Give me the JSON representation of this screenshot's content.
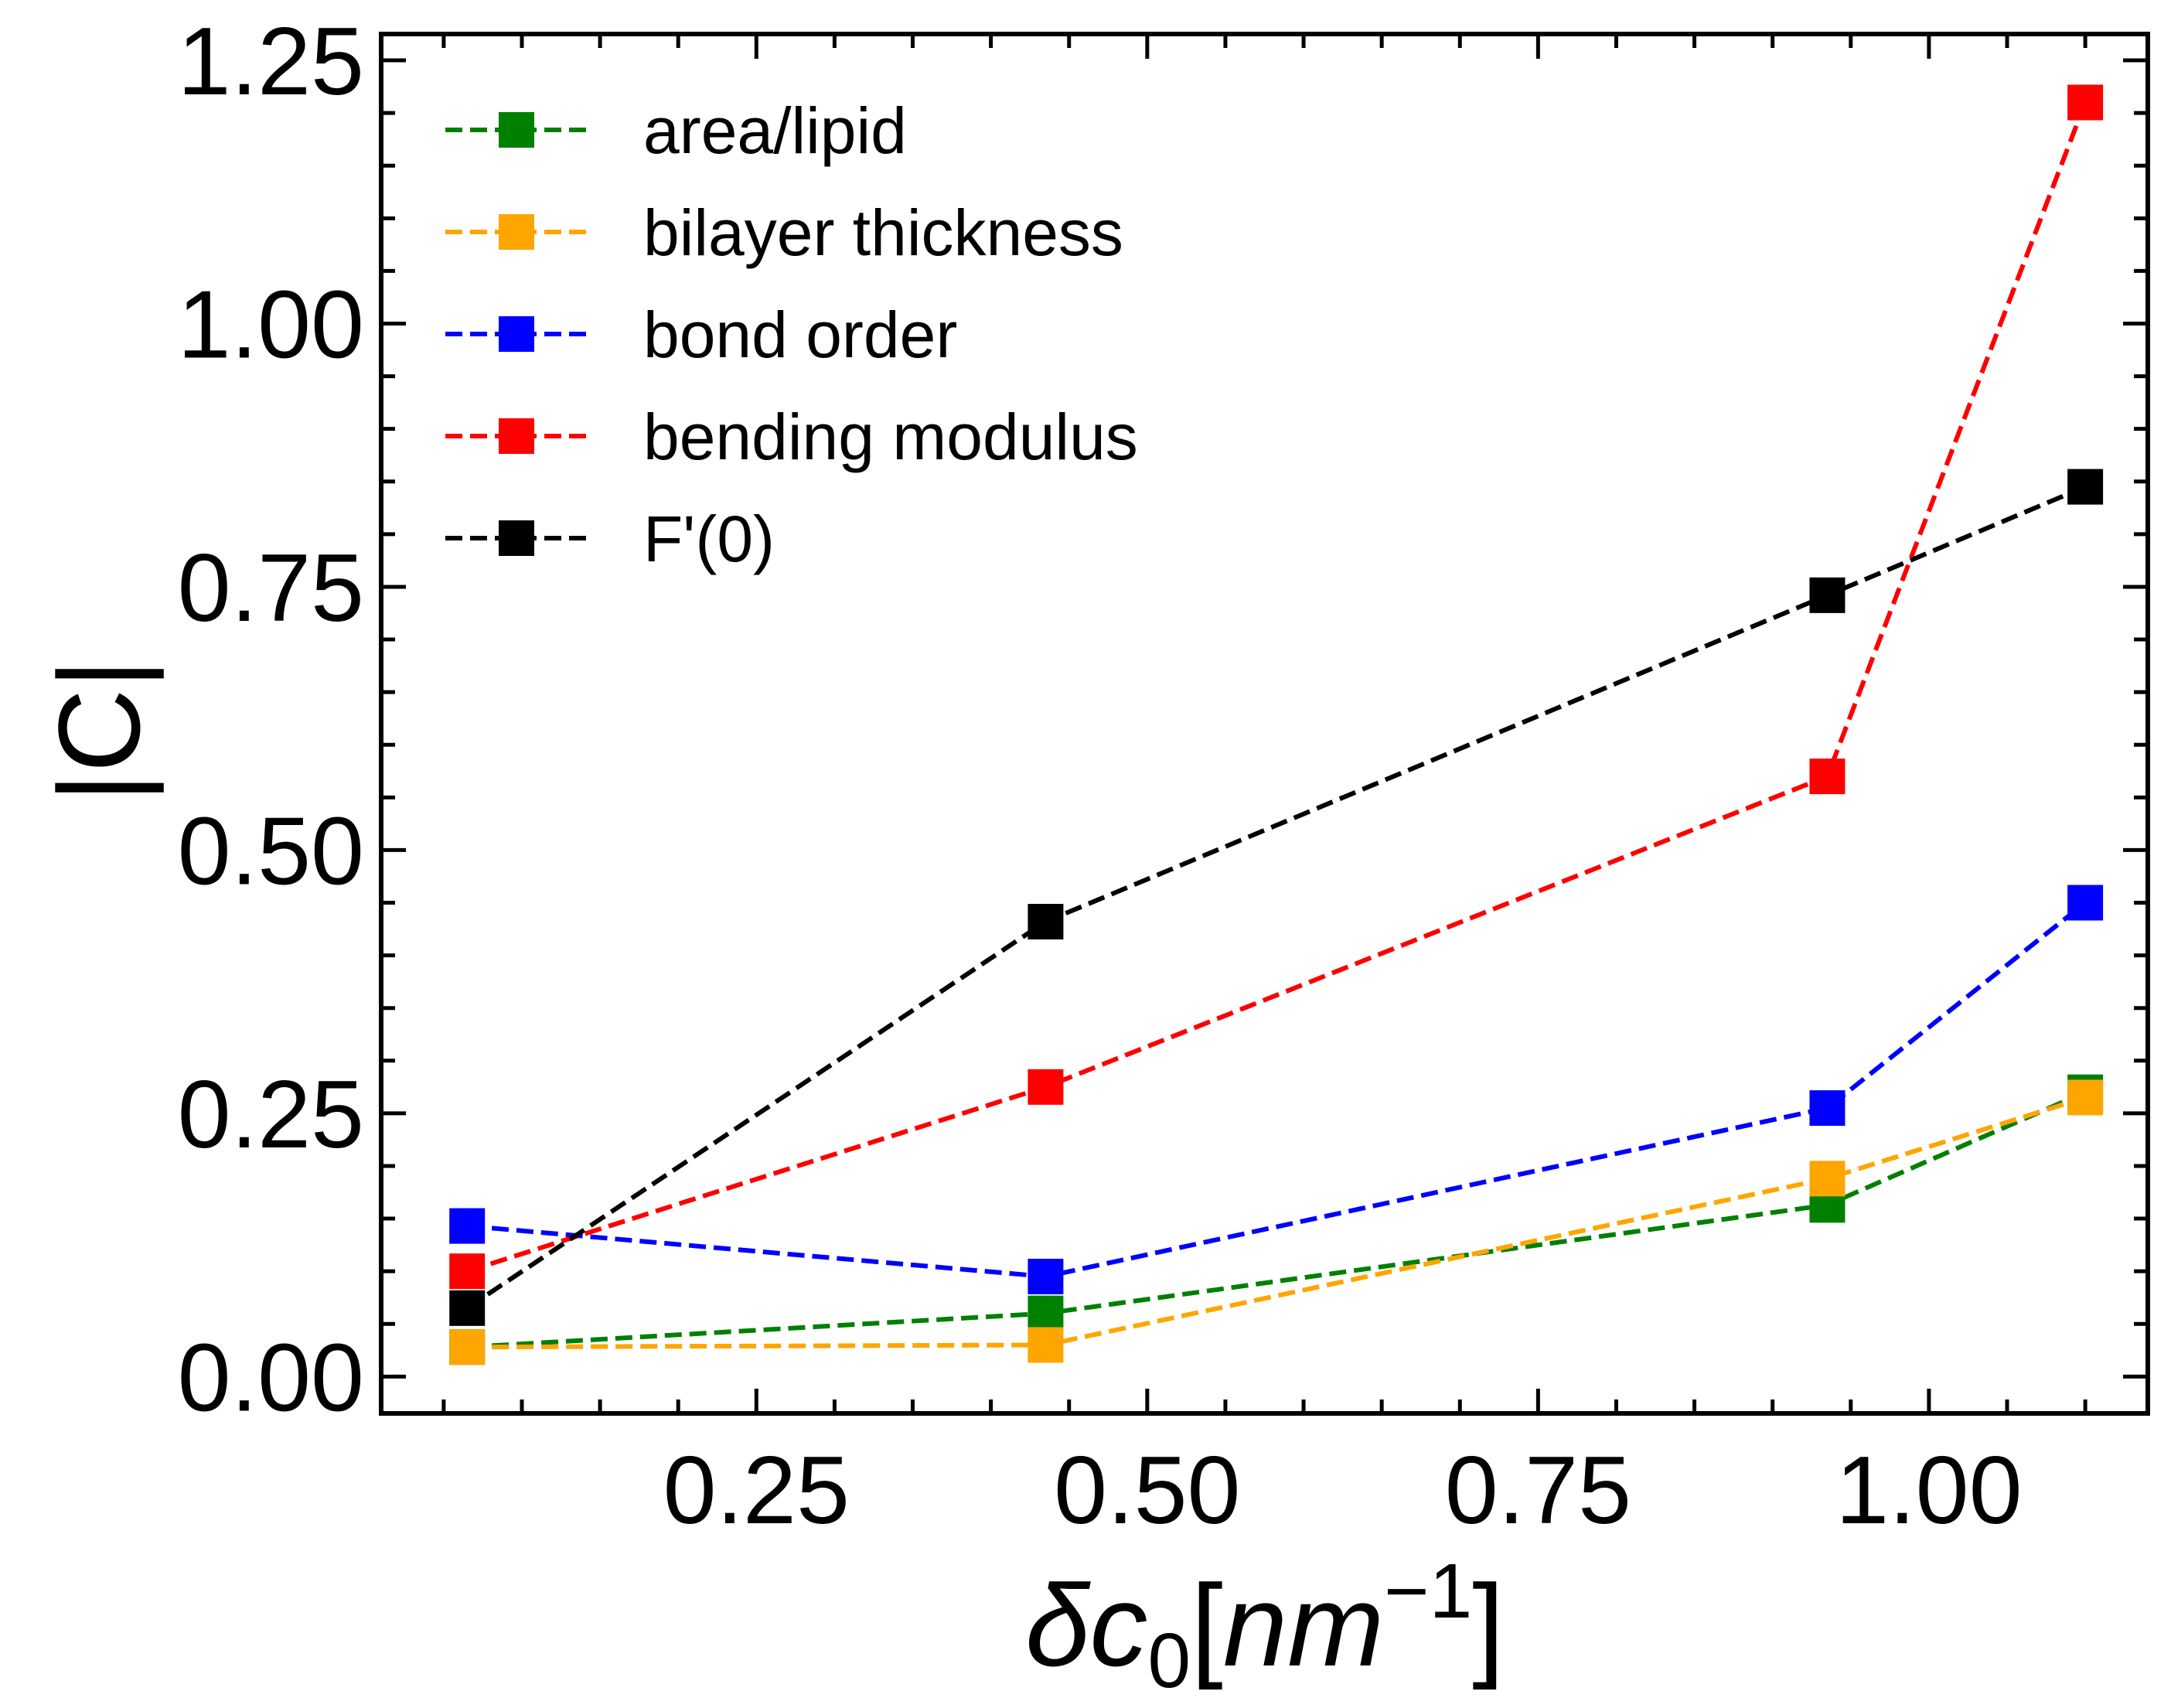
{
  "chart_data": {
    "type": "line",
    "title": "",
    "xlabel": {
      "delta": "δ",
      "c": "c",
      "sub": "0",
      "open": "[",
      "unit": "nm",
      "exponent": "−1",
      "close": "]"
    },
    "ylabel": "|C|",
    "xlim": [
      0.01,
      1.14
    ],
    "ylim": [
      -0.035,
      1.275
    ],
    "xticks": [
      0.25,
      0.5,
      0.75,
      1.0
    ],
    "xtick_labels": [
      "0.25",
      "0.50",
      "0.75",
      "1.00"
    ],
    "yticks": [
      0.0,
      0.25,
      0.5,
      0.75,
      1.0,
      1.25
    ],
    "ytick_labels": [
      "0.00",
      "0.25",
      "0.50",
      "0.75",
      "1.00",
      "1.25"
    ],
    "grid": false,
    "legend_position": "top-left",
    "line_style": "dashed",
    "marker": "square",
    "x": [
      0.065,
      0.435,
      0.935,
      1.1
    ],
    "series": [
      {
        "name": "area/lipid",
        "color": "#008000",
        "values": [
          0.028,
          0.06,
          0.163,
          0.27
        ]
      },
      {
        "name": "bilayer thickness",
        "color": "#FFA500",
        "values": [
          0.028,
          0.03,
          0.188,
          0.265
        ]
      },
      {
        "name": "bond order",
        "color": "#0000FF",
        "values": [
          0.143,
          0.095,
          0.255,
          0.45
        ]
      },
      {
        "name": "bending modulus",
        "color": "#FF0000",
        "values": [
          0.1,
          0.275,
          0.57,
          1.21
        ]
      },
      {
        "name": "F'(0)",
        "color": "#000000",
        "values": [
          0.065,
          0.432,
          0.742,
          0.845
        ]
      }
    ]
  }
}
